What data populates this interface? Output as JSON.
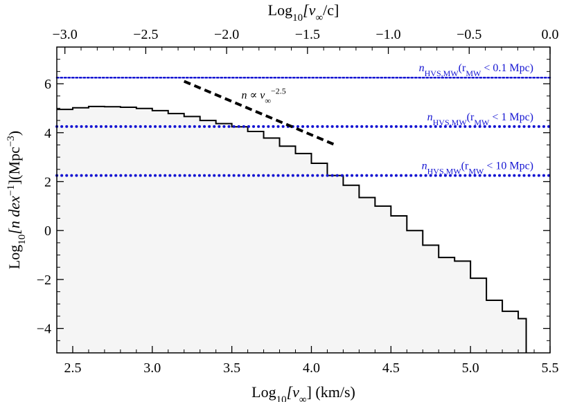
{
  "chart_data": {
    "type": "step",
    "title": "",
    "xlabel": {
      "pre": "Log",
      "sub": "10",
      "post": "[v",
      "vsub": "∞",
      "end": "] (km/s)"
    },
    "ylabel": {
      "pre": "Log",
      "sub": "10",
      "mid": "[n dex",
      "sup1": "−1",
      "mid2": "](Mpc",
      "sup2": "−3",
      "end": ")"
    },
    "x2label": {
      "pre": "Log",
      "sub": "10",
      "post": "[v",
      "vsub": "∞",
      "end": "/c]"
    },
    "xlim": [
      2.4,
      5.5
    ],
    "ylim": [
      -5,
      7.5
    ],
    "x2lim": [
      -3.05,
      0.0
    ],
    "x_ticks": [
      "2.5",
      "3.0",
      "3.5",
      "4.0",
      "4.5",
      "5.0",
      "5.5"
    ],
    "x_tick_values": [
      2.5,
      3.0,
      3.5,
      4.0,
      4.5,
      5.0,
      5.5
    ],
    "y_ticks": [
      "−4",
      "−2",
      "0",
      "2",
      "4",
      "6"
    ],
    "y_tick_values": [
      -4,
      -2,
      0,
      2,
      4,
      6
    ],
    "x2_ticks": [
      "−3.0",
      "−2.5",
      "−2.0",
      "−1.5",
      "−1.0",
      "−0.5",
      "0.0"
    ],
    "x2_tick_values": [
      -3.0,
      -2.5,
      -2.0,
      -1.5,
      -1.0,
      -0.5,
      0.0
    ],
    "histogram": {
      "edges": [
        2.4,
        2.5,
        2.6,
        2.7,
        2.8,
        2.9,
        3.0,
        3.1,
        3.2,
        3.3,
        3.4,
        3.5,
        3.6,
        3.7,
        3.8,
        3.9,
        4.0,
        4.1,
        4.2,
        4.3,
        4.4,
        4.5,
        4.6,
        4.7,
        4.8,
        4.9,
        5.0,
        5.1,
        5.2,
        5.3,
        5.35
      ],
      "values": [
        4.95,
        5.02,
        5.07,
        5.06,
        5.04,
        4.99,
        4.9,
        4.78,
        4.66,
        4.5,
        4.37,
        4.24,
        4.05,
        3.78,
        3.45,
        3.15,
        2.75,
        2.25,
        1.85,
        1.35,
        1.0,
        0.6,
        0.0,
        -0.6,
        -1.1,
        -1.25,
        -1.95,
        -2.85,
        -3.3,
        -3.6
      ],
      "color": "#000000",
      "fill": "#f5f5f5"
    },
    "reference_lines": [
      {
        "label_n": "n",
        "label_sub": "HVS,MW",
        "label_mid": "(r",
        "label_sub2": "MW",
        "label_end": " < 0.1 Mpc)",
        "y": 6.25,
        "style": "fine-dotted",
        "color": "#1414d2"
      },
      {
        "label_n": "n",
        "label_sub": "HVS,MW",
        "label_mid": "(r",
        "label_sub2": "MW",
        "label_end": " < 1 Mpc)",
        "y": 4.25,
        "style": "dotted",
        "color": "#1414d2"
      },
      {
        "label_n": "n",
        "label_sub": "HVS,MW",
        "label_mid": "(r",
        "label_sub2": "MW",
        "label_end": " < 10 Mpc)",
        "y": 2.25,
        "style": "dotted",
        "color": "#1414d2"
      }
    ],
    "power_law": {
      "x": [
        3.2,
        4.15
      ],
      "y": [
        6.1,
        3.5
      ],
      "label_pre": "n ∝ v",
      "label_sub": "∞",
      "label_sup": "−2.5",
      "style": "dashed",
      "color": "#000000"
    },
    "annotation_positions": {
      "power_law_label_at": [
        3.7,
        5.4
      ]
    }
  }
}
